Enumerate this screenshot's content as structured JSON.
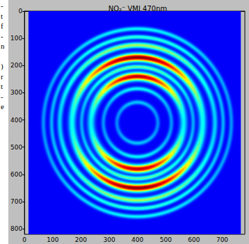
{
  "side_text": [
    "-",
    "t",
    "f",
    "-",
    "n",
    null,
    ")",
    "r",
    "t",
    "-",
    "e"
  ],
  "chart_data": {
    "type": "image",
    "title": "NO₂⁻ VMI 470nm",
    "xlim": [
      0,
      780
    ],
    "ylim": [
      0,
      820
    ],
    "xticks": [
      0,
      100,
      200,
      300,
      400,
      500,
      600,
      700
    ],
    "yticks": [
      0,
      100,
      200,
      300,
      400,
      500,
      600,
      700,
      800
    ],
    "grid": false,
    "center": [
      400,
      410
    ],
    "background_level": 0.12,
    "rings": [
      {
        "radius": 345,
        "width": 8,
        "intensity": 0.25,
        "anisotropy": 0.4
      },
      {
        "radius": 315,
        "width": 8,
        "intensity": 0.3,
        "anisotropy": 0.4
      },
      {
        "radius": 285,
        "width": 10,
        "intensity": 0.42,
        "anisotropy": 0.5
      },
      {
        "radius": 240,
        "width": 14,
        "intensity": 0.88,
        "anisotropy": 0.7
      },
      {
        "radius": 205,
        "width": 8,
        "intensity": 0.35,
        "anisotropy": 0.5
      },
      {
        "radius": 170,
        "width": 14,
        "intensity": 0.82,
        "anisotropy": 0.7
      },
      {
        "radius": 125,
        "width": 8,
        "intensity": 0.25,
        "anisotropy": 0.4
      },
      {
        "radius": 75,
        "width": 8,
        "intensity": 0.2,
        "anisotropy": 0.3
      }
    ]
  }
}
